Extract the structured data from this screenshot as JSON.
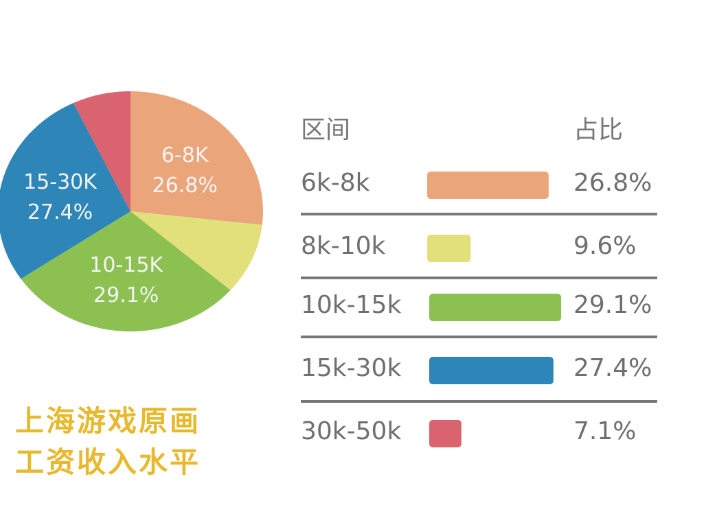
{
  "chart_data": {
    "type": "pie",
    "title": "上海游戏原画工资收入水平",
    "title_lines": [
      "上海游戏原画",
      "工资收入水平"
    ],
    "slices": [
      {
        "pie_label": "6-8K",
        "label": "6k-8k",
        "value": 26.8,
        "text": "26.8%",
        "color": "#EBA57A"
      },
      {
        "pie_label": "",
        "label": "8k-10k",
        "value": 9.6,
        "text": "9.6%",
        "color": "#E1E07A"
      },
      {
        "pie_label": "10-15K",
        "label": "10k-15k",
        "value": 29.1,
        "text": "29.1%",
        "color": "#8CC152"
      },
      {
        "pie_label": "15-30K",
        "label": "15k-30k",
        "value": 27.4,
        "text": "27.4%",
        "color": "#2E86B8"
      },
      {
        "pie_label": "",
        "label": "30k-50k",
        "value": 7.1,
        "text": "7.1%",
        "color": "#D9636F"
      }
    ],
    "table_headers": {
      "range": "区间",
      "share": "占比"
    },
    "title_color": "#E8B92E"
  }
}
